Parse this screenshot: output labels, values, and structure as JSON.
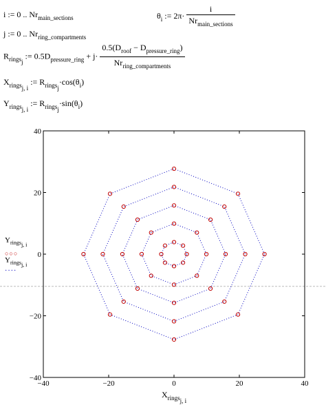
{
  "equations": {
    "i_def": "i := 0 .. Nr",
    "i_def_sub": "main_sections",
    "theta_lhs": "θ",
    "theta_lhs_sub": "i",
    "theta_mid": ":= 2π·",
    "theta_num": "i",
    "theta_den": "Nr",
    "theta_den_sub": "main_sections",
    "j_def": "j := 0 .. Nr",
    "j_def_sub": "ring_compartments",
    "r_lhs": "R",
    "r_lhs_sub": "rings",
    "r_lhs_sub2": "j",
    "r_mid": ":= 0.5D",
    "r_mid_sub": "pressure_ring",
    "r_plus": "+ j·",
    "r_num_a": "0.5(D",
    "r_num_sub1": "roof",
    "r_num_b": " − D",
    "r_num_sub2": "pressure_ring",
    "r_num_c": ")",
    "r_den": "Nr",
    "r_den_sub": "ring_compartments",
    "x_lhs": "X",
    "x_lhs_sub": "rings",
    "x_lhs_sub2": "j, i",
    "x_rhs_a": ":= R",
    "x_rhs_sub": "rings",
    "x_rhs_sub2": "j",
    "x_rhs_b": "·cos(θ",
    "x_rhs_sub3": "i",
    "x_rhs_c": ")",
    "y_lhs": "Y",
    "y_lhs_sub": "rings",
    "y_lhs_sub2": "j, i",
    "y_rhs_a": ":= R",
    "y_rhs_sub": "rings",
    "y_rhs_sub2": "j",
    "y_rhs_b": "·sin(θ",
    "y_rhs_sub3": "i",
    "y_rhs_c": ")"
  },
  "legend": {
    "entry1_main": "Y",
    "entry1_sub": "rings",
    "entry1_sub2": "j, i",
    "entry2_main": "Y",
    "entry2_sub": "rings",
    "entry2_sub2": "j, i"
  },
  "xaxis_label": {
    "main": "X",
    "sub": "rings",
    "sub2": "j, i"
  },
  "colors": {
    "series_markers": "#c00000",
    "series_lines": "#0000c0",
    "frame": "#000000"
  },
  "chart_data": {
    "type": "scatter",
    "xlim": [
      -40,
      40
    ],
    "ylim": [
      -40,
      40
    ],
    "xticks": [
      "−40",
      "−20",
      "0",
      "20",
      "40"
    ],
    "yticks": [
      "40",
      "20",
      "0",
      "−20",
      "−40"
    ],
    "xtick_values": [
      -40,
      -20,
      0,
      20,
      40
    ],
    "ytick_values": [
      40,
      20,
      0,
      -20,
      -40
    ],
    "ring_radii": [
      3.9,
      9.9,
      15.8,
      21.8,
      27.7
    ],
    "sections": 8,
    "series": [
      {
        "name": "",
        "style": "circle markers"
      },
      {
        "name": "",
        "style": "dotted line"
      }
    ]
  }
}
